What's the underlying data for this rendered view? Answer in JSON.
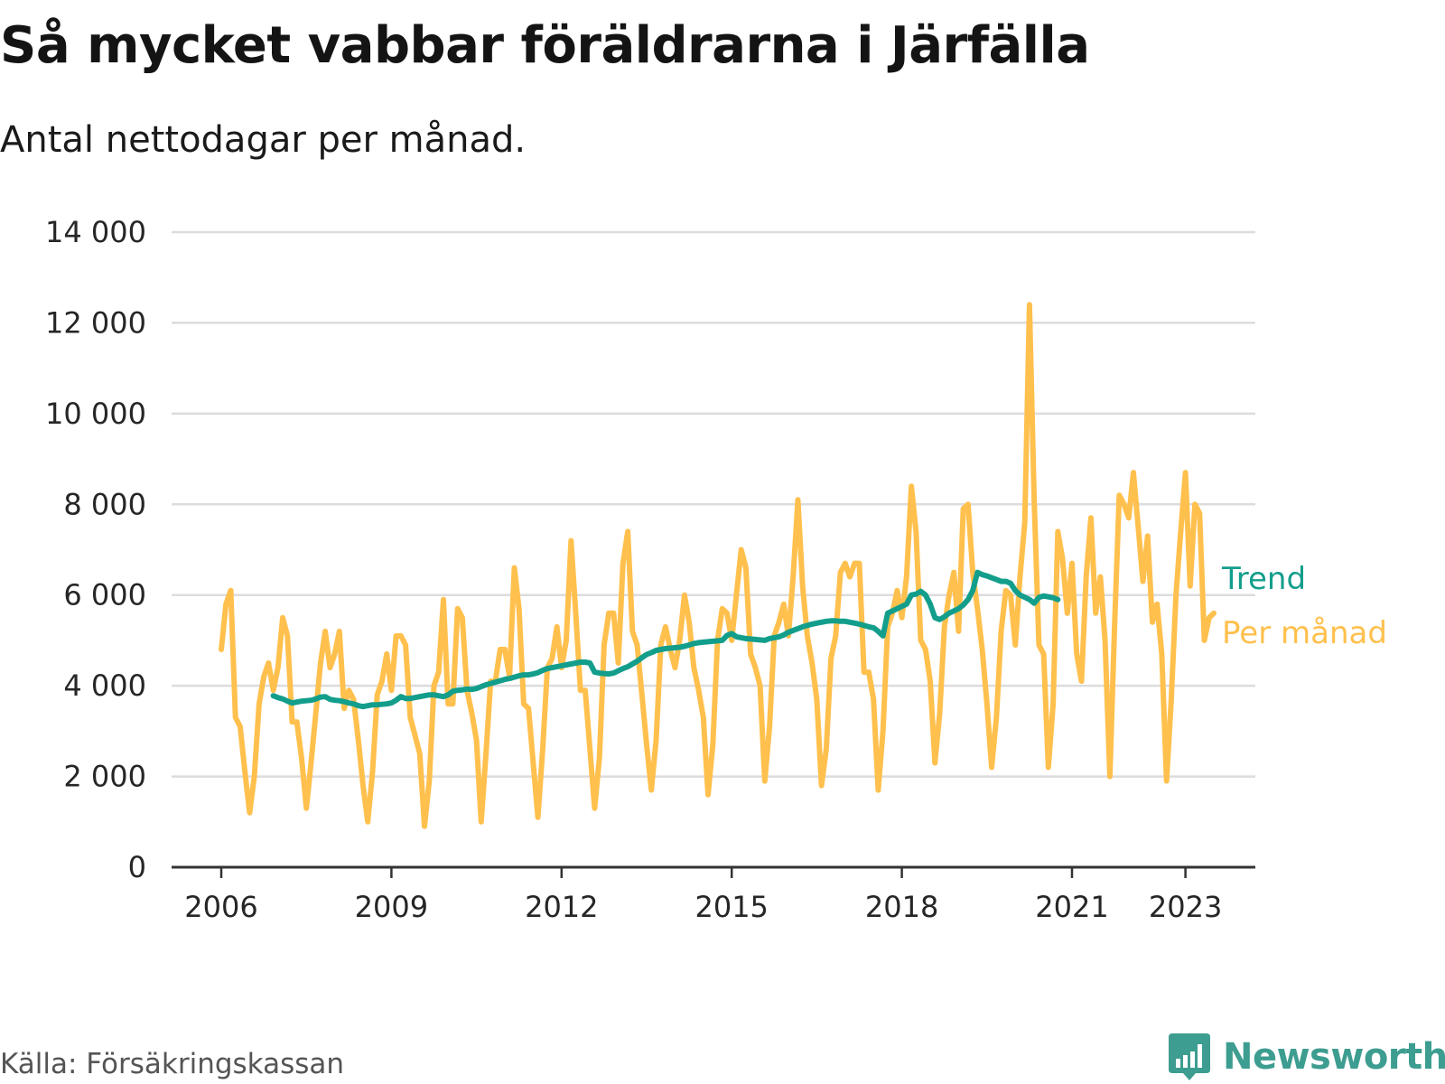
{
  "title": "Så mycket vabbar föräldrarna i Järfälla",
  "subtitle": "Antal nettodagar per månad.",
  "source": "Källa: Försäkringskassan",
  "brand": {
    "name": "Newsworthy",
    "icon": "bar-chart-speech-bubble-icon",
    "color": "#3d9d90"
  },
  "chart_data": {
    "type": "line",
    "title": "Så mycket vabbar föräldrarna i Järfälla",
    "subtitle": "Antal nettodagar per månad.",
    "xlabel": "",
    "ylabel": "",
    "ylim": [
      0,
      14000
    ],
    "xlim": [
      "2006-01",
      "2023-05"
    ],
    "y_ticks": [
      0,
      2000,
      4000,
      6000,
      8000,
      10000,
      12000,
      14000
    ],
    "y_tick_labels": [
      "0",
      "2 000",
      "4 000",
      "6 000",
      "8 000",
      "10 000",
      "12 000",
      "14 000"
    ],
    "x_ticks": [
      "2006-01",
      "2009-01",
      "2012-01",
      "2015-01",
      "2018-01",
      "2021-01",
      "2023-01"
    ],
    "x_tick_labels": [
      "2006",
      "2009",
      "2012",
      "2015",
      "2018",
      "2021",
      "2023"
    ],
    "grid": "horizontal",
    "legend": "inline labels at right end of lines",
    "series": [
      {
        "name": "Per månad",
        "color": "#ffc04d",
        "start": "2006-01",
        "values": [
          4800,
          5800,
          6100,
          3300,
          3100,
          2100,
          1200,
          2000,
          3600,
          4200,
          4500,
          3900,
          4400,
          5500,
          5100,
          3200,
          3200,
          2400,
          1300,
          2300,
          3400,
          4500,
          5200,
          4400,
          4700,
          5200,
          3500,
          3900,
          3700,
          2800,
          1800,
          1000,
          2100,
          3800,
          4100,
          4700,
          3900,
          5100,
          5100,
          4900,
          3300,
          2900,
          2500,
          900,
          1900,
          4000,
          4300,
          5900,
          3600,
          3600,
          5700,
          5500,
          3900,
          3400,
          2800,
          1000,
          2500,
          4100,
          4100,
          4800,
          4800,
          4200,
          6600,
          5700,
          3600,
          3500,
          2300,
          1100,
          2600,
          4400,
          4600,
          5300,
          4400,
          5000,
          7200,
          5600,
          3900,
          3900,
          2600,
          1300,
          2400,
          4900,
          5600,
          5600,
          4500,
          6700,
          7400,
          5200,
          4900,
          3800,
          2700,
          1700,
          2800,
          4900,
          5300,
          4800,
          4400,
          5000,
          6000,
          5400,
          4400,
          3900,
          3300,
          1600,
          2700,
          5000,
          5700,
          5600,
          5000,
          6000,
          7000,
          6600,
          4700,
          4400,
          4000,
          1900,
          3100,
          5100,
          5400,
          5800,
          5100,
          6400,
          8100,
          6200,
          5100,
          4500,
          3700,
          1800,
          2600,
          4600,
          5100,
          6500,
          6700,
          6400,
          6700,
          6700,
          4300,
          4300,
          3700,
          1700,
          3000,
          5300,
          5600,
          6100,
          5500,
          6400,
          8400,
          7400,
          5000,
          4800,
          4100,
          2300,
          3400,
          5300,
          6000,
          6500,
          5200,
          7900,
          8000,
          6500,
          5700,
          4800,
          3600,
          2200,
          3300,
          5200,
          6100,
          6000,
          4900,
          6400,
          7600,
          12400,
          8100,
          4900,
          4700,
          2200,
          3600,
          7400,
          6800,
          5600,
          6700,
          4700,
          4100,
          6400,
          7700,
          5600,
          6400,
          5000,
          2000,
          5300,
          8200,
          8000,
          7700,
          8700,
          7500,
          6300,
          7300,
          5400,
          5800,
          4700,
          1900,
          3700,
          6000,
          7400,
          8700,
          6200,
          8000,
          7800,
          5000,
          5500,
          5600
        ],
        "label": "Per månad"
      },
      {
        "name": "Trend",
        "color": "#139e8c",
        "start": "2006-12",
        "values": [
          3780,
          3740,
          3710,
          3660,
          3620,
          3640,
          3660,
          3670,
          3680,
          3710,
          3750,
          3760,
          3700,
          3680,
          3670,
          3650,
          3620,
          3600,
          3560,
          3540,
          3560,
          3580,
          3580,
          3590,
          3600,
          3620,
          3680,
          3760,
          3720,
          3720,
          3740,
          3760,
          3780,
          3800,
          3800,
          3780,
          3760,
          3800,
          3880,
          3900,
          3910,
          3930,
          3920,
          3940,
          3980,
          4020,
          4050,
          4080,
          4110,
          4140,
          4160,
          4190,
          4220,
          4240,
          4240,
          4260,
          4290,
          4340,
          4380,
          4400,
          4420,
          4440,
          4460,
          4480,
          4500,
          4520,
          4520,
          4500,
          4300,
          4280,
          4270,
          4260,
          4280,
          4330,
          4380,
          4420,
          4480,
          4540,
          4620,
          4690,
          4730,
          4780,
          4800,
          4820,
          4830,
          4840,
          4850,
          4870,
          4900,
          4930,
          4950,
          4960,
          4970,
          4980,
          4990,
          5000,
          5110,
          5150,
          5080,
          5060,
          5040,
          5030,
          5020,
          5010,
          5000,
          5040,
          5060,
          5080,
          5120,
          5180,
          5220,
          5260,
          5300,
          5330,
          5360,
          5380,
          5400,
          5420,
          5430,
          5430,
          5420,
          5420,
          5400,
          5380,
          5360,
          5330,
          5300,
          5280,
          5200,
          5100,
          5600,
          5650,
          5700,
          5750,
          5800,
          6000,
          6020,
          6080,
          6000,
          5800,
          5500,
          5460,
          5520,
          5600,
          5650,
          5700,
          5780,
          5900,
          6100,
          6500,
          6450,
          6420,
          6380,
          6340,
          6300,
          6300,
          6260,
          6100,
          6000,
          5950,
          5900,
          5820,
          5950,
          5980,
          5960,
          5940,
          5900
        ]
      }
    ]
  }
}
